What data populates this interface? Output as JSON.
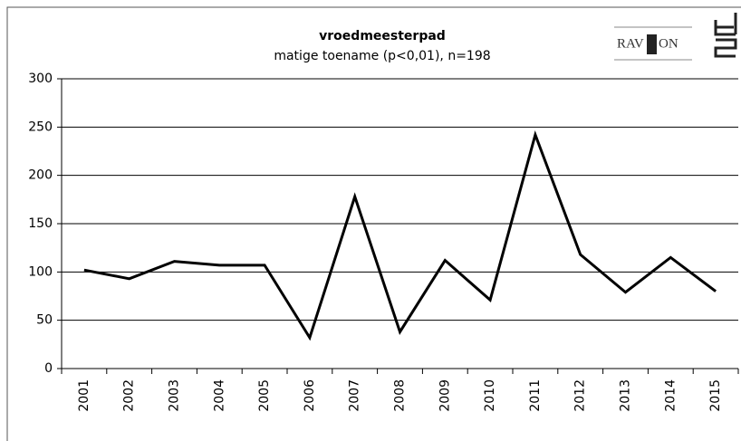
{
  "chart_data": {
    "type": "line",
    "title": "vroedmeesterpad",
    "subtitle": "matige toename (p<0,01), n=198",
    "logo_texts": [
      "RAV",
      "ON"
    ],
    "categories": [
      "2001",
      "2002",
      "2003",
      "2004",
      "2005",
      "2006",
      "2007",
      "2008",
      "2009",
      "2010",
      "2011",
      "2012",
      "2013",
      "2014",
      "2015"
    ],
    "series": [
      {
        "name": "vroedmeesterpad",
        "color": "#000000",
        "values": [
          102,
          93,
          111,
          107,
          107,
          32,
          178,
          38,
          112,
          71,
          242,
          118,
          79,
          115,
          80
        ]
      }
    ],
    "ylim": [
      0,
      300
    ],
    "yticks": [
      0,
      50,
      100,
      150,
      200,
      250,
      300
    ],
    "grid": true
  }
}
